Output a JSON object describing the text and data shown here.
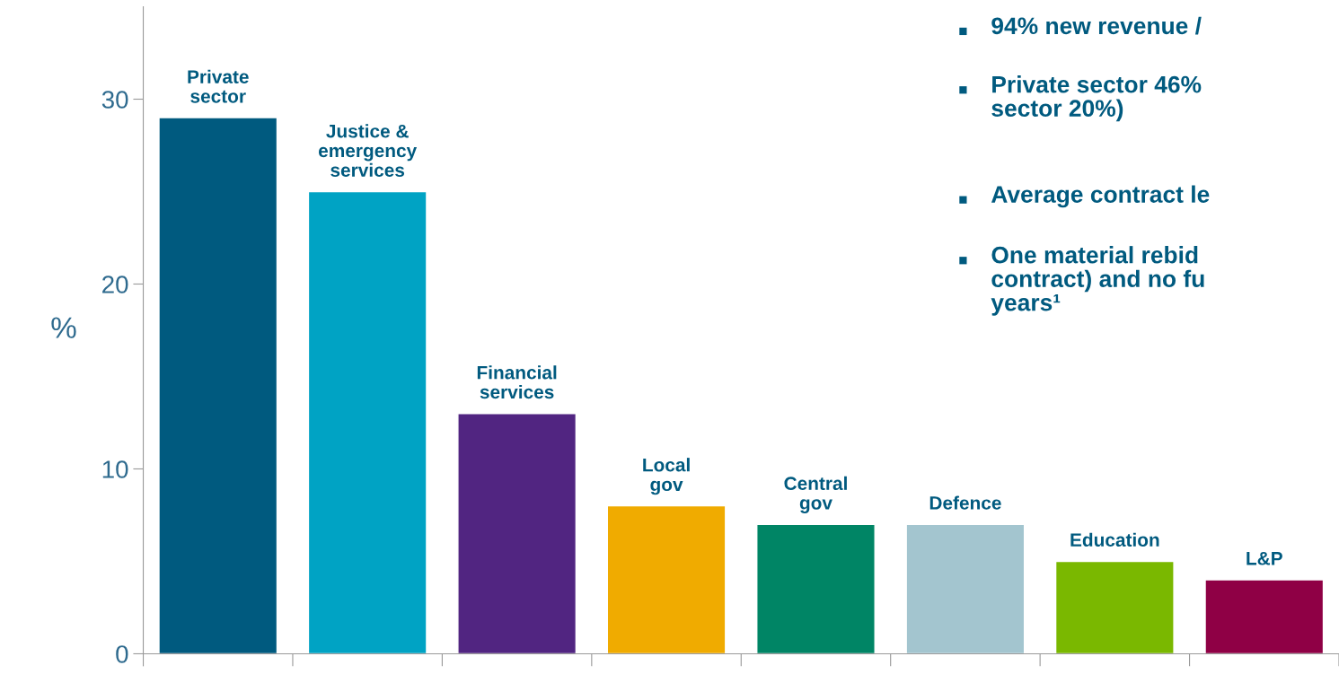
{
  "chart_data": {
    "type": "bar",
    "ylabel": "%",
    "categories": [
      "Private\nsector",
      "Justice &\nemergency\nservices",
      "Financial\nservices",
      "Local\ngov",
      "Central\ngov",
      "Defence",
      "Education",
      "L&P"
    ],
    "values": [
      29,
      25,
      13,
      8,
      7,
      7,
      5,
      4
    ],
    "colors": [
      "#005a7f",
      "#00a3c4",
      "#512581",
      "#f0ab00",
      "#008565",
      "#a3c5cf",
      "#7ab800",
      "#8f0045"
    ],
    "ylim": [
      0,
      35
    ],
    "yticks": [
      0,
      10,
      20,
      30
    ],
    "grid": false,
    "legend": false,
    "annotations": [
      "94% new revenue /",
      "Private sector 46%\nsector 20%)",
      "Average contract le",
      "One material rebid\ncontract) and no fu\nyears¹"
    ]
  }
}
